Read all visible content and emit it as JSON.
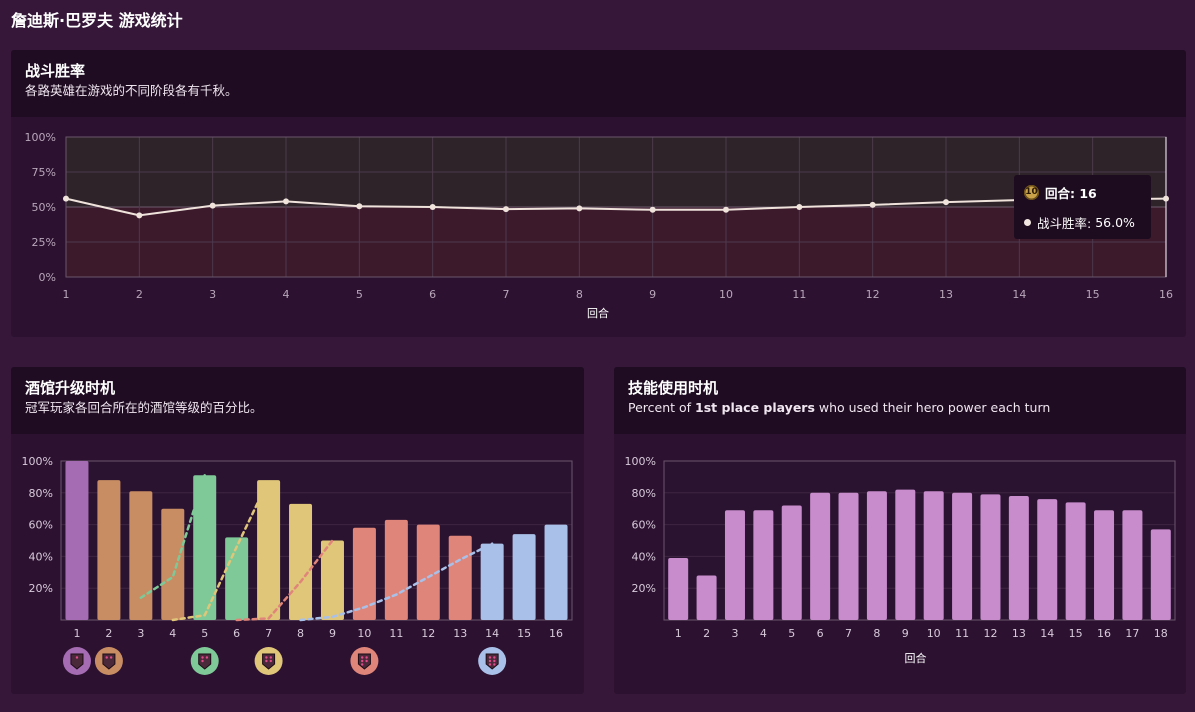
{
  "page": {
    "title": "詹迪斯·巴罗夫 游戏统计"
  },
  "winrate_card": {
    "title": "战斗胜率",
    "subtitle": "各路英雄在游戏的不同阶段各有千秋。"
  },
  "tavern_card": {
    "title": "酒馆升级时机",
    "subtitle": "冠军玩家各回合所在的酒馆等级的百分比。"
  },
  "hero_card": {
    "title": "技能使用时机",
    "subtitle_pre": "Percent of ",
    "subtitle_bold": "1st place players",
    "subtitle_post": " who used their hero power each turn"
  },
  "tooltip": {
    "badge": "10",
    "header": "回合: 16",
    "label": "战斗胜率: ",
    "value": "56.0%"
  },
  "colors": {
    "tier1": "#a56bb3",
    "tier2": "#c98d63",
    "tier3": "#7ec997",
    "tier4": "#e0c679",
    "tier5": "#e0857a",
    "tier6": "#a9c0e8",
    "hero": "#c88ccc",
    "line": "#efe3dc"
  },
  "chart_data": [
    {
      "type": "line",
      "x": [
        1,
        2,
        3,
        4,
        5,
        6,
        7,
        8,
        9,
        10,
        11,
        12,
        13,
        14,
        15,
        16
      ],
      "series": [
        {
          "values": [
            56,
            44,
            51,
            54,
            50.5,
            50,
            48.5,
            49,
            48,
            48,
            50,
            51.5,
            53.5,
            55,
            55.5,
            56
          ]
        }
      ],
      "xlabel": "回合",
      "yticks": [
        "0%",
        "25%",
        "50%",
        "75%",
        "100%"
      ],
      "ylim": [
        0,
        100
      ],
      "reference_line": 50,
      "grid": true
    },
    {
      "type": "bar",
      "categories": [
        "1",
        "2",
        "3",
        "4",
        "5",
        "6",
        "7",
        "8",
        "9",
        "10",
        "11",
        "12",
        "13",
        "14",
        "15",
        "16"
      ],
      "values": [
        100,
        88,
        81,
        70,
        91,
        52,
        88,
        73,
        50,
        58,
        63,
        60,
        53,
        48,
        54,
        60
      ],
      "bar_tiers": [
        1,
        2,
        2,
        2,
        3,
        3,
        4,
        4,
        4,
        5,
        5,
        5,
        5,
        6,
        6,
        6
      ],
      "dashed_series": [
        {
          "tier": 3,
          "x": [
            3,
            4,
            5
          ],
          "values": [
            14,
            27,
            91
          ]
        },
        {
          "tier": 4,
          "x": [
            4,
            5,
            6,
            7
          ],
          "values": [
            0,
            3,
            46,
            88
          ]
        },
        {
          "tier": 5,
          "x": [
            6,
            7,
            8,
            9
          ],
          "values": [
            0,
            1,
            24,
            50
          ]
        },
        {
          "tier": 6,
          "x": [
            8,
            9,
            10,
            11,
            12,
            13,
            14
          ],
          "values": [
            0,
            2,
            8,
            16,
            27,
            38,
            48
          ]
        }
      ],
      "tier_badges": [
        {
          "x": 1,
          "tier": 1
        },
        {
          "x": 2,
          "tier": 2
        },
        {
          "x": 5,
          "tier": 3
        },
        {
          "x": 7,
          "tier": 4
        },
        {
          "x": 10,
          "tier": 5
        },
        {
          "x": 14,
          "tier": 6
        }
      ],
      "yticks": [
        "20%",
        "40%",
        "60%",
        "80%",
        "100%"
      ],
      "ylim": [
        0,
        100
      ],
      "grid": true
    },
    {
      "type": "bar",
      "categories": [
        "1",
        "2",
        "3",
        "4",
        "5",
        "6",
        "7",
        "8",
        "9",
        "10",
        "11",
        "12",
        "13",
        "14",
        "15",
        "16",
        "17",
        "18"
      ],
      "values": [
        39,
        28,
        69,
        69,
        72,
        80,
        80,
        81,
        82,
        81,
        80,
        79,
        78,
        76,
        74,
        69,
        69,
        57
      ],
      "xlabel": "回合",
      "yticks": [
        "20%",
        "40%",
        "60%",
        "80%",
        "100%"
      ],
      "ylim": [
        0,
        100
      ],
      "grid": true
    }
  ]
}
